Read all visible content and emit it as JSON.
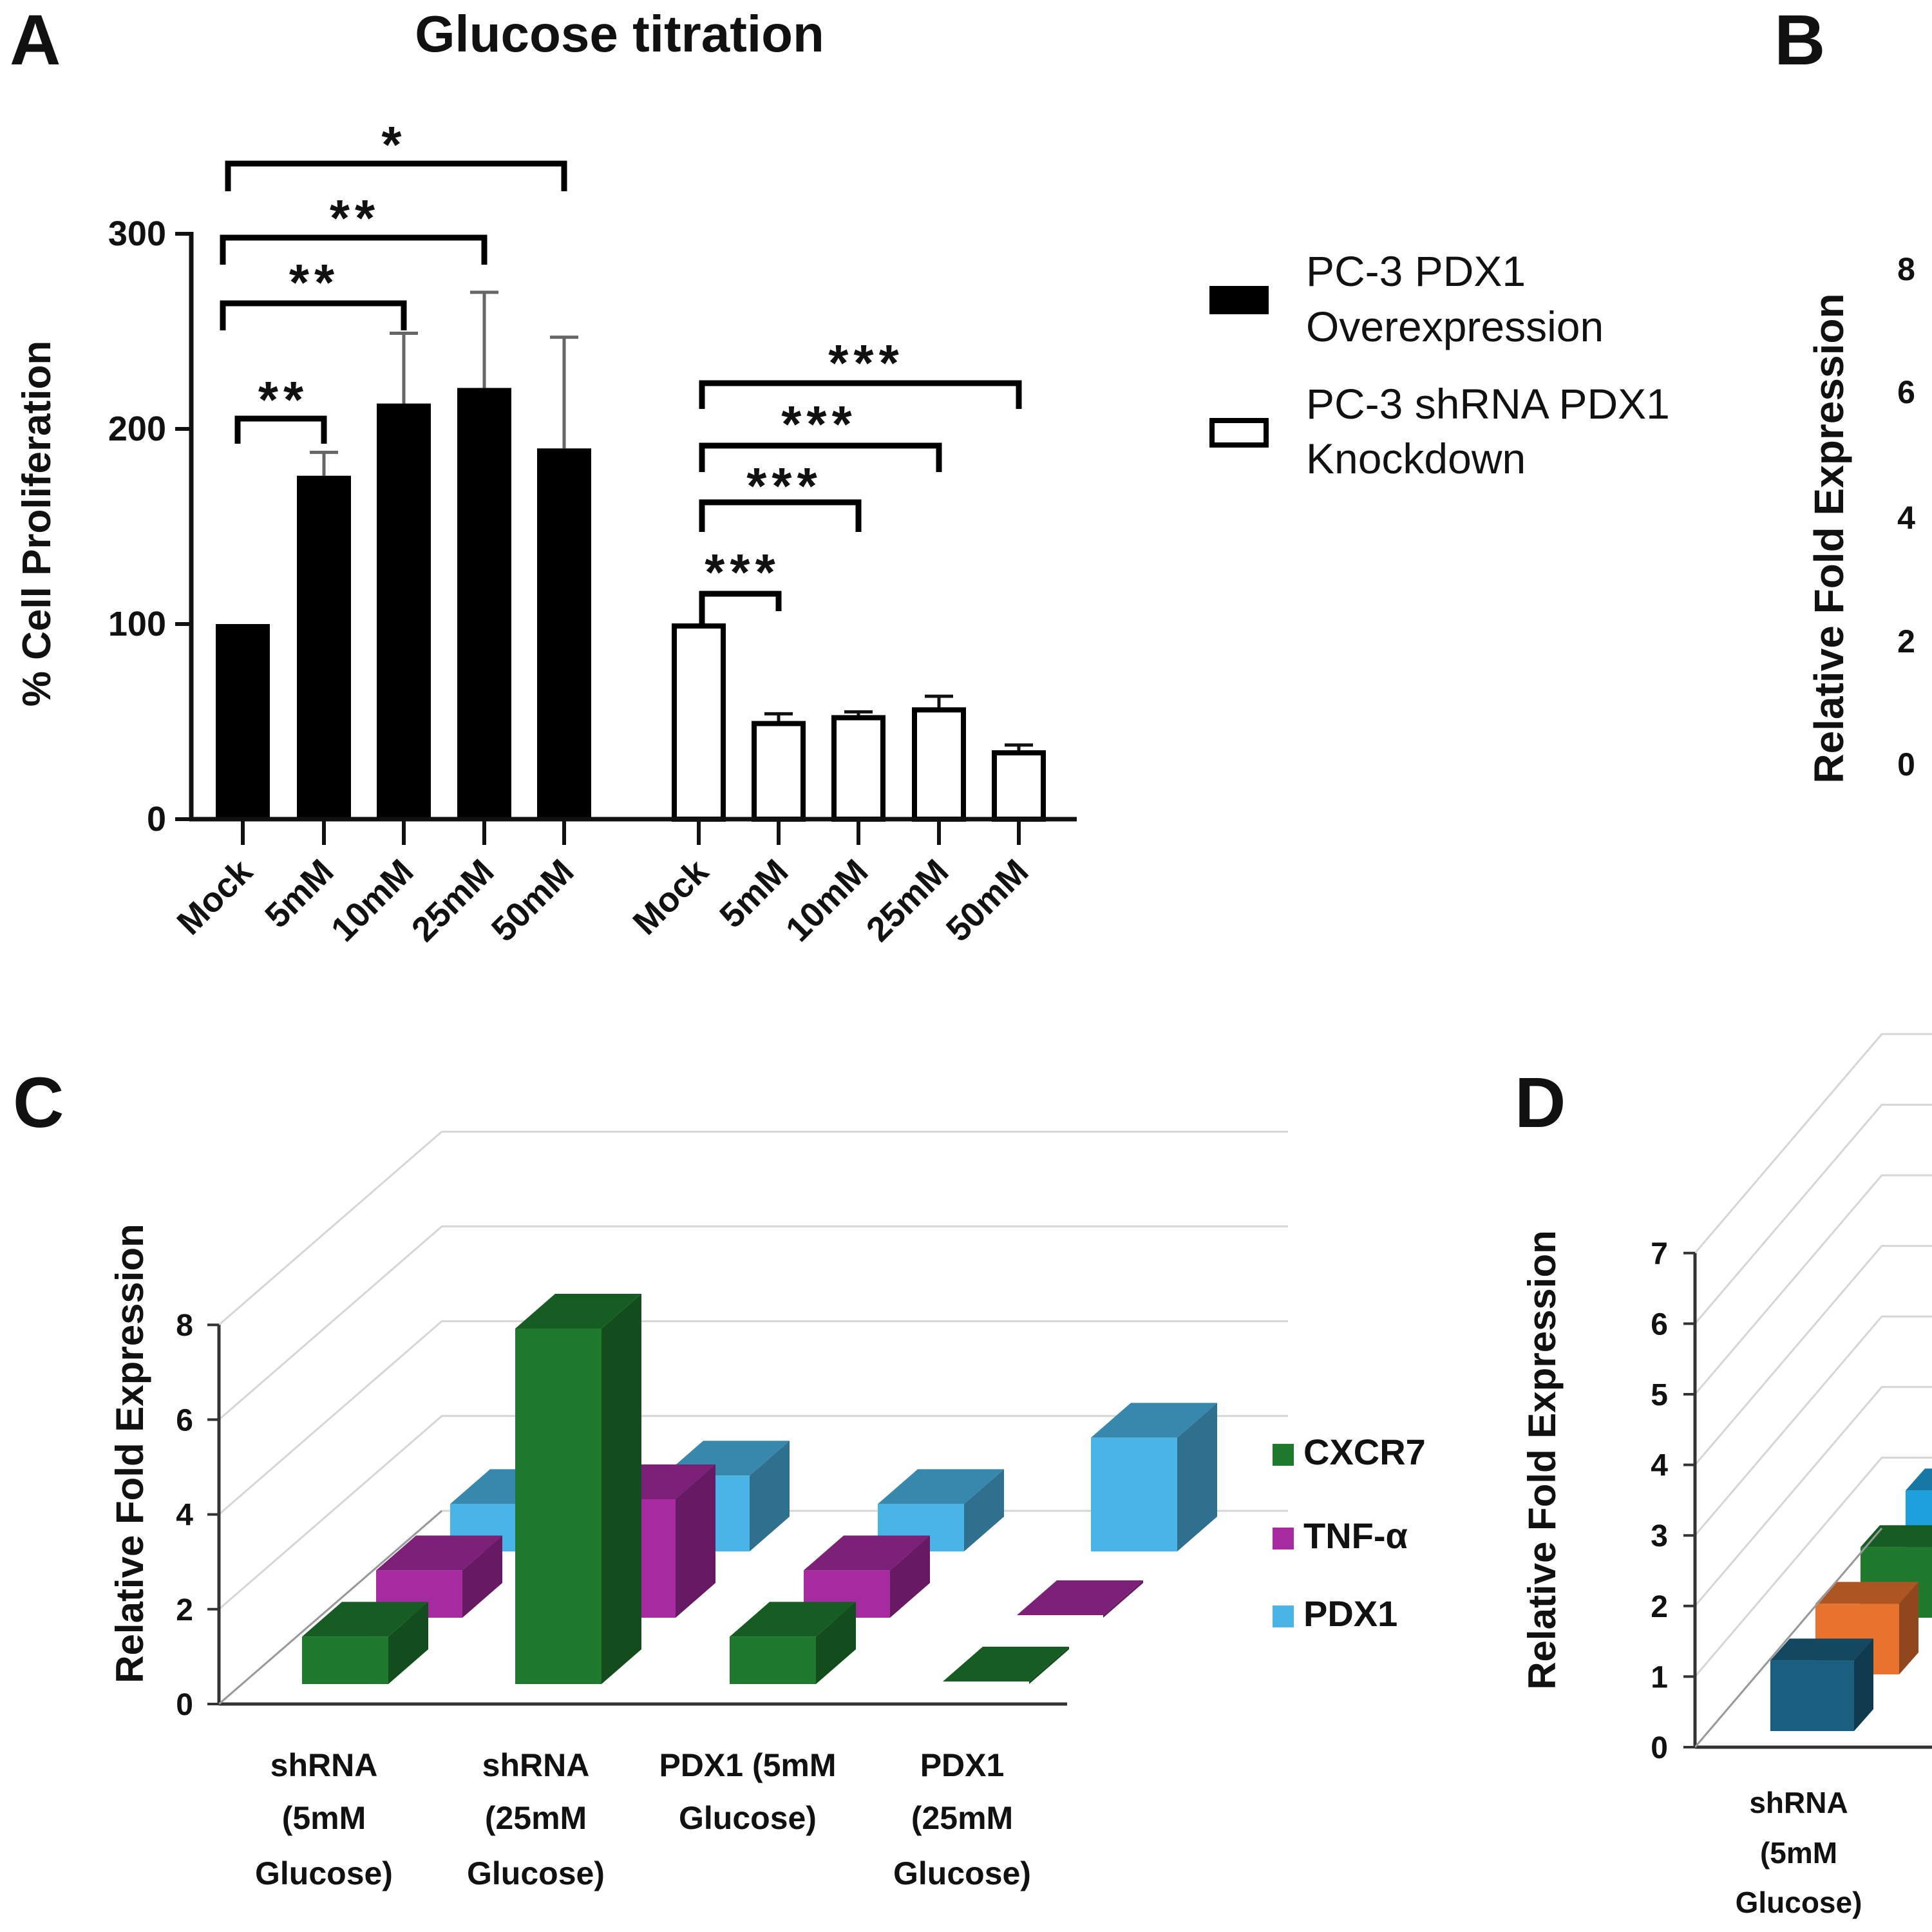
{
  "panels": {
    "a": "A",
    "b": "B",
    "c": "C",
    "d": "D"
  },
  "chart_data": [
    {
      "type": "bar",
      "panel": "A",
      "title": "Glucose titration",
      "ylabel": "% Cell Proliferation",
      "ylim": [
        0,
        300
      ],
      "yticks": [
        "0",
        "100",
        "200",
        "300"
      ],
      "categories": [
        "Mock",
        "5mM",
        "10mM",
        "25mM",
        "50mM"
      ],
      "legend_position": "right",
      "series": [
        {
          "name": "PC-3 PDX1 Overexpression",
          "legend_lines": [
            "PC-3 PDX1",
            "Overexpression"
          ],
          "color": "#000000",
          "values": [
            100,
            176,
            213,
            221,
            190
          ],
          "errors": [
            0,
            12,
            36,
            49,
            57
          ]
        },
        {
          "name": "PC-3 shRNA PDX1 Knockdown",
          "legend_lines": [
            "PC-3 shRNA PDX1",
            "Knockdown"
          ],
          "color": "#ffffff",
          "values": [
            99,
            49,
            52,
            56,
            34
          ],
          "errors": [
            0,
            5,
            3,
            7,
            4
          ]
        }
      ],
      "significance": [
        {
          "series": 0,
          "from": "Mock",
          "to": "5mM",
          "label": "**"
        },
        {
          "series": 0,
          "from": "Mock",
          "to": "10mM",
          "label": "**"
        },
        {
          "series": 0,
          "from": "Mock",
          "to": "25mM",
          "label": "**"
        },
        {
          "series": 0,
          "from": "Mock",
          "to": "50mM",
          "label": "*"
        },
        {
          "series": 1,
          "from": "Mock",
          "to": "5mM",
          "label": "***"
        },
        {
          "series": 1,
          "from": "Mock",
          "to": "10mM",
          "label": "***"
        },
        {
          "series": 1,
          "from": "Mock",
          "to": "25mM",
          "label": "***"
        },
        {
          "series": 1,
          "from": "Mock",
          "to": "50mM",
          "label": "***"
        }
      ]
    },
    {
      "type": "bar",
      "panel": "B",
      "ylabel": "Relative Fold Expression",
      "yticks": [
        "0",
        "2",
        "4",
        "6",
        "8"
      ],
      "ylim": [
        0,
        8
      ]
    },
    {
      "type": "bar",
      "panel": "C",
      "style": "3d",
      "ylabel": "Relative Fold Expression",
      "ylim": [
        0,
        8
      ],
      "yticks": [
        "0",
        "2",
        "4",
        "6",
        "8"
      ],
      "grid": true,
      "legend_position": "right",
      "categories": [
        [
          "shRNA",
          "(5mM",
          "Glucose)"
        ],
        [
          "shRNA",
          "(25mM",
          "Glucose)"
        ],
        [
          "PDX1 (5mM",
          "Glucose)"
        ],
        [
          "PDX1",
          "(25mM",
          "Glucose)"
        ]
      ],
      "series": [
        {
          "name": "CXCR7",
          "color": "#1f7a2e",
          "values": [
            1.0,
            7.5,
            1.0,
            0.0
          ]
        },
        {
          "name": "TNF-α",
          "color": "#a62aa0",
          "values": [
            1.0,
            2.5,
            1.0,
            0.0
          ]
        },
        {
          "name": "PDX1",
          "color": "#4bb4e6",
          "values": [
            1.0,
            1.6,
            1.0,
            2.4
          ]
        }
      ]
    },
    {
      "type": "bar",
      "panel": "D",
      "style": "3d",
      "ylabel": "Relative Fold Expression",
      "ylim": [
        0,
        7
      ],
      "yticks": [
        "0",
        "1",
        "2",
        "3",
        "4",
        "5",
        "6",
        "7"
      ],
      "grid": true,
      "categories": [
        [
          "shRNA",
          "(5mM",
          "Glucose)"
        ]
      ],
      "series": [
        {
          "color": "#1a5f80",
          "values": [
            1.0
          ]
        },
        {
          "color": "#e8732e",
          "values": [
            1.0
          ]
        },
        {
          "color": "#1f7a2e",
          "values": [
            1.0
          ]
        },
        {
          "color": "#1ea0dc",
          "values": [
            1.0
          ]
        }
      ]
    }
  ]
}
